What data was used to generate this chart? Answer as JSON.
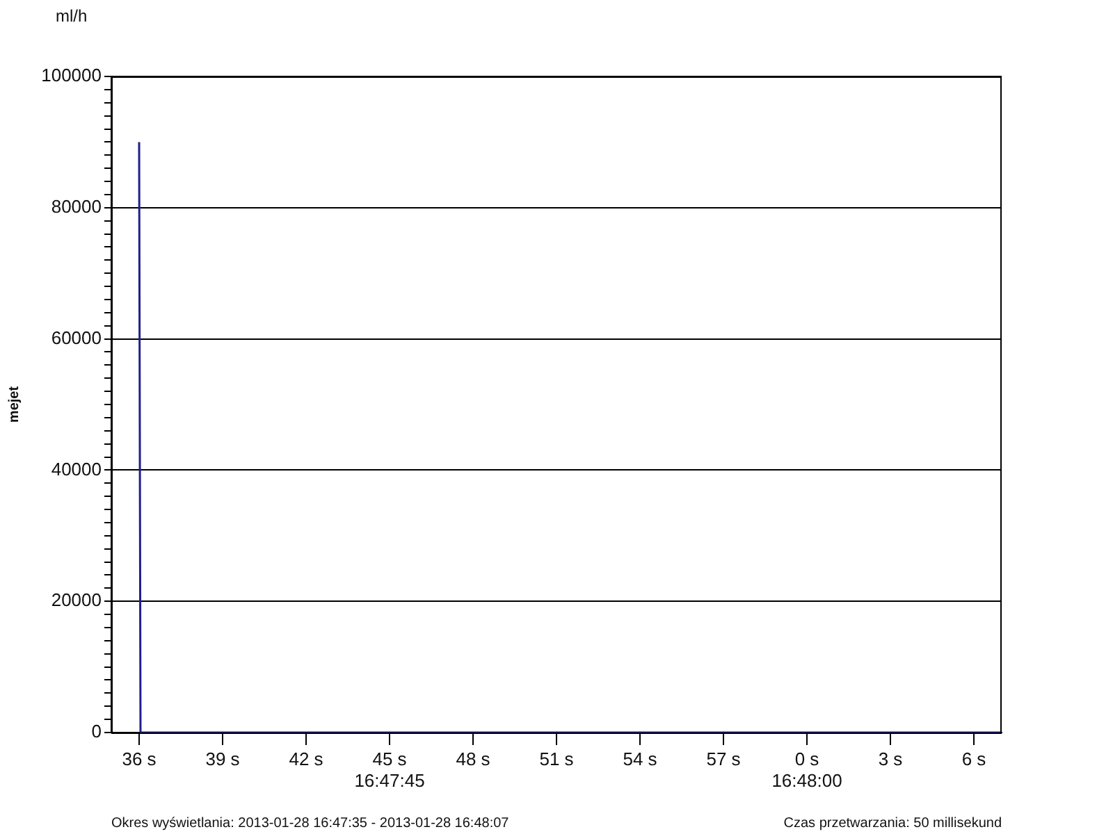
{
  "chart_data": {
    "type": "line",
    "title": "ml/h",
    "ylabel": "mejet",
    "annotations": [
      "Okres wyświetlania: 2013-01-28 16:47:35 - 2013-01-28 16:48:07",
      "Czas przetwarzania: 50 millisekund"
    ],
    "x": [
      "2013-01-28T16:47:36",
      "2013-01-28T16:47:36.05",
      "2013-01-28T16:48:07"
    ],
    "series": [
      {
        "color": "#1f1f8f",
        "values": [
          90000,
          0,
          0
        ]
      }
    ],
    "xlim": [
      "2013-01-28T16:47:35",
      "2013-01-28T16:48:07"
    ],
    "xticks": [
      {
        "value": "2013-01-28T16:47:36",
        "label": "36 s"
      },
      {
        "value": "2013-01-28T16:47:39",
        "label": "39 s"
      },
      {
        "value": "2013-01-28T16:47:42",
        "label": "42 s"
      },
      {
        "value": "2013-01-28T16:47:45",
        "label": "45 s\n16:47:45"
      },
      {
        "value": "2013-01-28T16:47:48",
        "label": "48 s"
      },
      {
        "value": "2013-01-28T16:47:51",
        "label": "51 s"
      },
      {
        "value": "2013-01-28T16:47:54",
        "label": "54 s"
      },
      {
        "value": "2013-01-28T16:47:57",
        "label": "57 s"
      },
      {
        "value": "2013-01-28T16:48:00",
        "label": "0 s\n16:48:00"
      },
      {
        "value": "2013-01-28T16:48:03",
        "label": "3 s"
      },
      {
        "value": "2013-01-28T16:48:06",
        "label": "6 s"
      }
    ],
    "ylim": [
      0,
      100000
    ],
    "yticks": [
      0,
      {
        "value": 2000,
        "label": null
      },
      {
        "value": 4000,
        "label": null
      },
      {
        "value": 6000,
        "label": null
      },
      {
        "value": 8000,
        "label": null
      },
      {
        "value": 10000,
        "label": null
      },
      {
        "value": 12000,
        "label": null
      },
      {
        "value": 14000,
        "label": null
      },
      {
        "value": 16000,
        "label": null
      },
      {
        "value": 18000,
        "label": null
      },
      20000,
      {
        "value": 22000,
        "label": null
      },
      {
        "value": 24000,
        "label": null
      },
      {
        "value": 26000,
        "label": null
      },
      {
        "value": 28000,
        "label": null
      },
      {
        "value": 30000,
        "label": null
      },
      {
        "value": 32000,
        "label": null
      },
      {
        "value": 34000,
        "label": null
      },
      {
        "value": 36000,
        "label": null
      },
      {
        "value": 38000,
        "label": null
      },
      40000,
      {
        "value": 42000,
        "label": null
      },
      {
        "value": 44000,
        "label": null
      },
      {
        "value": 46000,
        "label": null
      },
      {
        "value": 48000,
        "label": null
      },
      {
        "value": 50000,
        "label": null
      },
      {
        "value": 52000,
        "label": null
      },
      {
        "value": 54000,
        "label": null
      },
      {
        "value": 56000,
        "label": null
      },
      {
        "value": 58000,
        "label": null
      },
      60000,
      {
        "value": 62000,
        "label": null
      },
      {
        "value": 64000,
        "label": null
      },
      {
        "value": 66000,
        "label": null
      },
      {
        "value": 68000,
        "label": null
      },
      {
        "value": 70000,
        "label": null
      },
      {
        "value": 72000,
        "label": null
      },
      {
        "value": 74000,
        "label": null
      },
      {
        "value": 76000,
        "label": null
      },
      {
        "value": 78000,
        "label": null
      },
      80000,
      {
        "value": 82000,
        "label": null
      },
      {
        "value": 84000,
        "label": null
      },
      {
        "value": 86000,
        "label": null
      },
      {
        "value": 88000,
        "label": null
      },
      {
        "value": 90000,
        "label": null
      },
      {
        "value": 92000,
        "label": null
      },
      {
        "value": 94000,
        "label": null
      },
      {
        "value": 96000,
        "label": null
      },
      {
        "value": 98000,
        "label": null
      },
      100000
    ],
    "grid": "y",
    "legend": false,
    "marker": "none",
    "line_style": "solid"
  }
}
